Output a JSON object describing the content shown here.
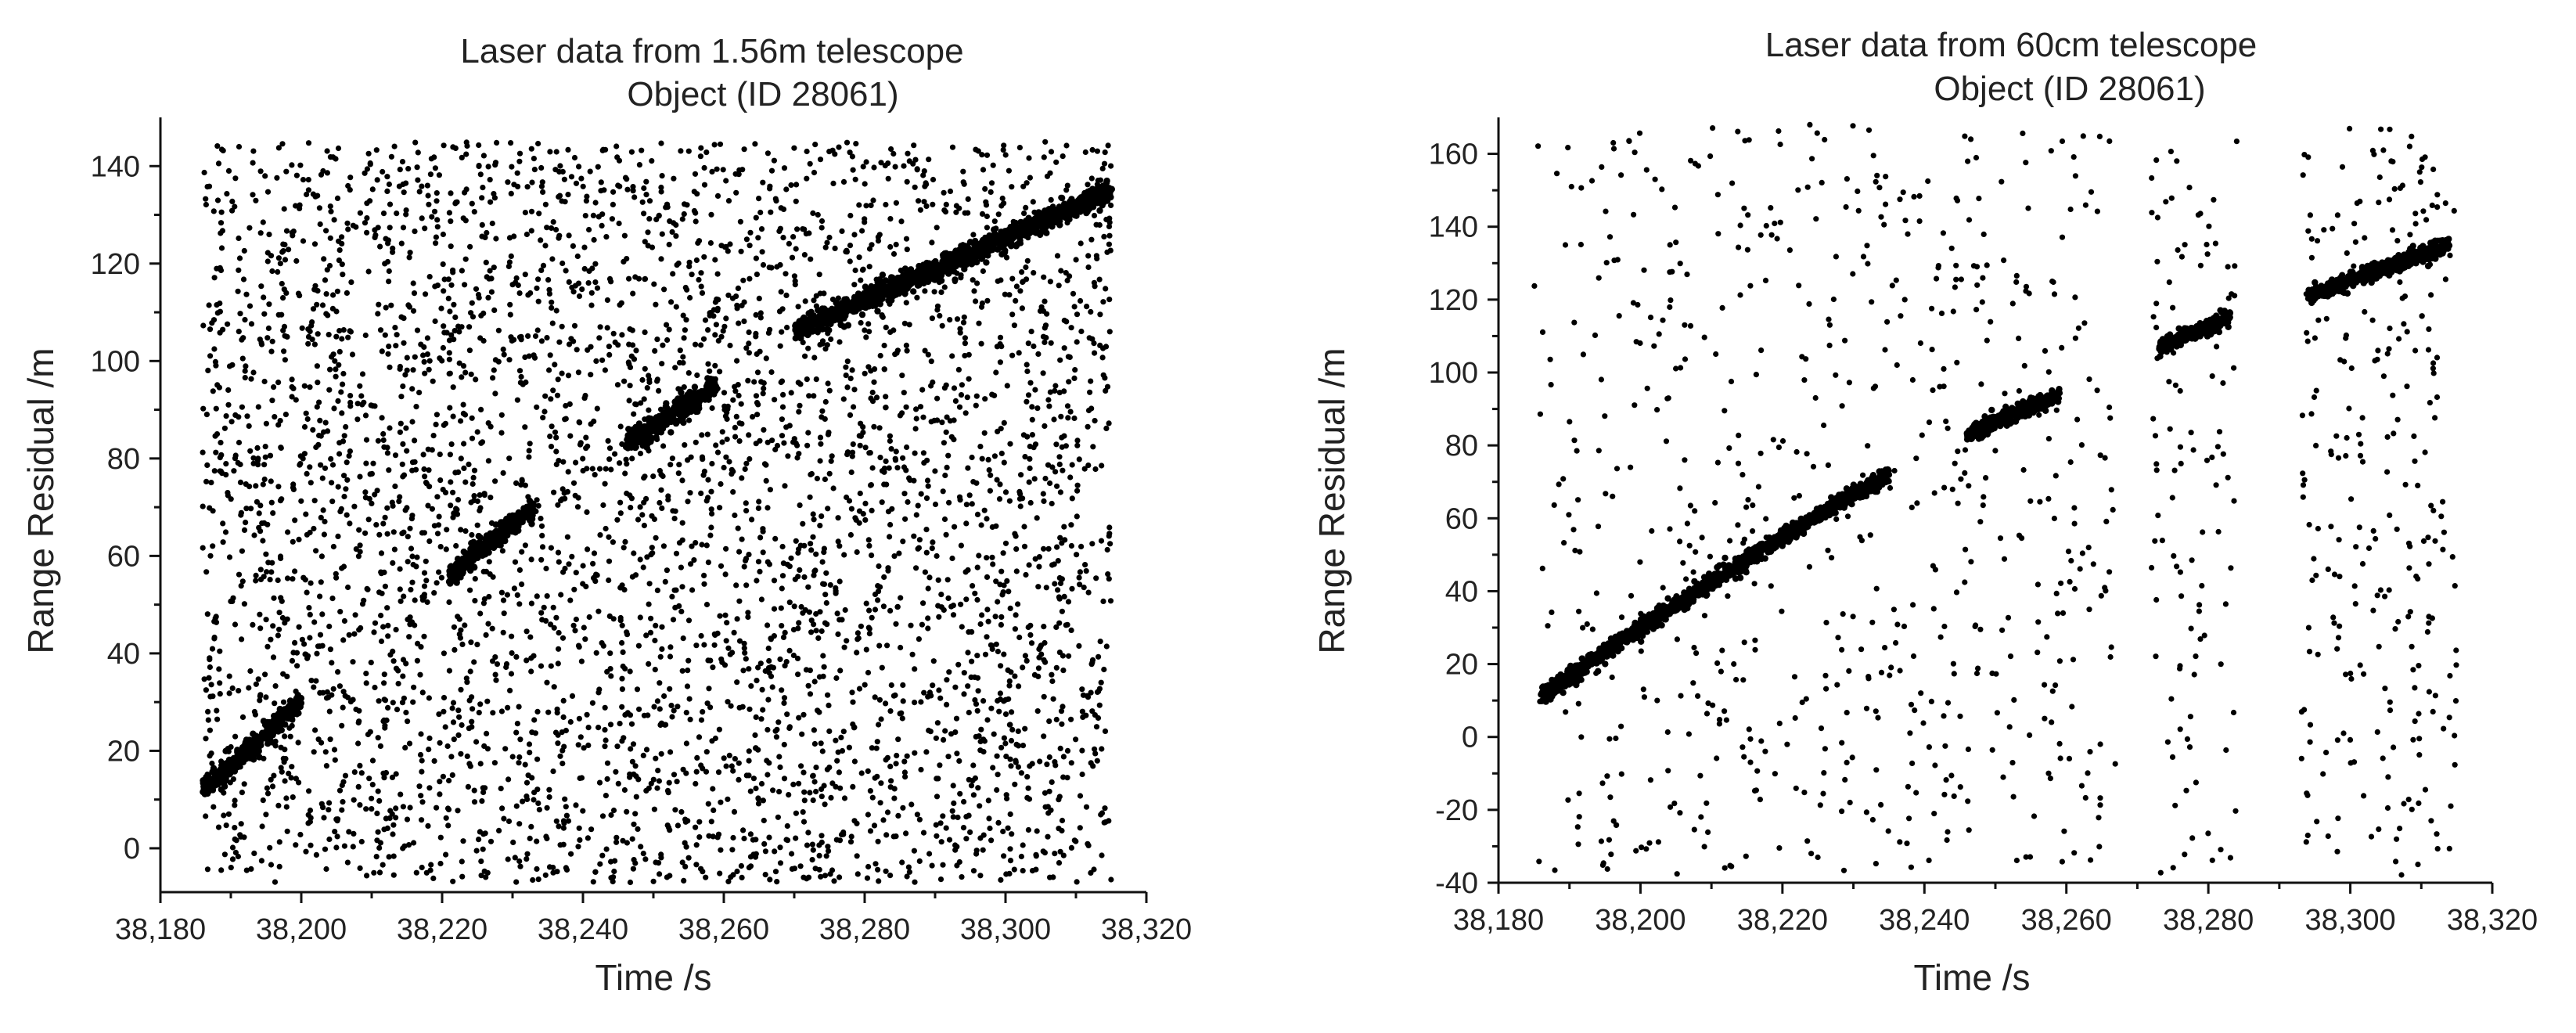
{
  "chart_data": [
    {
      "type": "scatter",
      "title": "Laser data from 1.56m telescope",
      "subtitle": "Object (ID 28061)",
      "xlabel": "Time /s",
      "ylabel": "Range Residual /m",
      "xlim": [
        38180,
        38320
      ],
      "ylim": [
        -9,
        150
      ],
      "x_ticks": [
        38180,
        38200,
        38220,
        38240,
        38260,
        38280,
        38300,
        38320
      ],
      "x_tick_labels": [
        "38,180",
        "38,200",
        "38,220",
        "38,240",
        "38,260",
        "38,280",
        "38,300",
        "38,320"
      ],
      "y_ticks": [
        0,
        20,
        40,
        60,
        80,
        100,
        120,
        140
      ],
      "y_tick_labels": [
        "0",
        "20",
        "40",
        "60",
        "80",
        "100",
        "120",
        "140"
      ],
      "grid": false,
      "marker_color": "#000000",
      "series": [
        {
          "segments": [
            {
              "x": [
                38186,
                38200
              ],
              "y": [
                12,
                30
              ]
            },
            {
              "x": [
                38221,
                38233
              ],
              "y": [
                56,
                70
              ]
            },
            {
              "x": [
                38246,
                38259
              ],
              "y": [
                83,
                95
              ]
            },
            {
              "x": [
                38270,
                38315
              ],
              "y": [
                106,
                135
              ]
            }
          ],
          "noise": {
            "x": [
              38186,
              38315
            ],
            "y": [
              -7,
              145
            ],
            "count": 4200
          }
        }
      ]
    },
    {
      "type": "scatter",
      "title": "Laser data from 60cm telescope",
      "subtitle": "Object (ID 28061)",
      "xlabel": "Time /s",
      "ylabel": "Range Residual /m",
      "xlim": [
        38180,
        38320
      ],
      "ylim": [
        -40,
        170
      ],
      "x_ticks": [
        38180,
        38200,
        38220,
        38240,
        38260,
        38280,
        38300,
        38320
      ],
      "x_tick_labels": [
        "38,180",
        "38,200",
        "38,220",
        "38,240",
        "38,260",
        "38,280",
        "38,300",
        "38,320"
      ],
      "y_ticks": [
        -40,
        -20,
        0,
        20,
        40,
        60,
        80,
        100,
        120,
        140,
        160
      ],
      "y_tick_labels": [
        "-40",
        "-20",
        "0",
        "20",
        "40",
        "60",
        "80",
        "100",
        "120",
        "140",
        "160"
      ],
      "grid": false,
      "marker_color": "#000000",
      "series": [
        {
          "segments": [
            {
              "x": [
                38186,
                38200
              ],
              "y": [
                11,
                30
              ]
            },
            {
              "x": [
                38200,
                38221
              ],
              "y": [
                30,
                56
              ]
            },
            {
              "x": [
                38221,
                38235
              ],
              "y": [
                56,
                72
              ]
            },
            {
              "x": [
                38246,
                38259
              ],
              "y": [
                83,
                94
              ]
            },
            {
              "x": [
                38273,
                38283
              ],
              "y": [
                107,
                115
              ]
            },
            {
              "x": [
                38294,
                38314
              ],
              "y": [
                121,
                135
              ]
            }
          ],
          "noise_windows": [
            {
              "x": [
                38185,
                38267
              ],
              "y": [
                -38,
                168
              ],
              "count": 650
            },
            {
              "x": [
                38272,
                38284
              ],
              "y": [
                -38,
                165
              ],
              "count": 110
            },
            {
              "x": [
                38293,
                38315
              ],
              "y": [
                -38,
                168
              ],
              "count": 260
            }
          ]
        }
      ]
    }
  ]
}
